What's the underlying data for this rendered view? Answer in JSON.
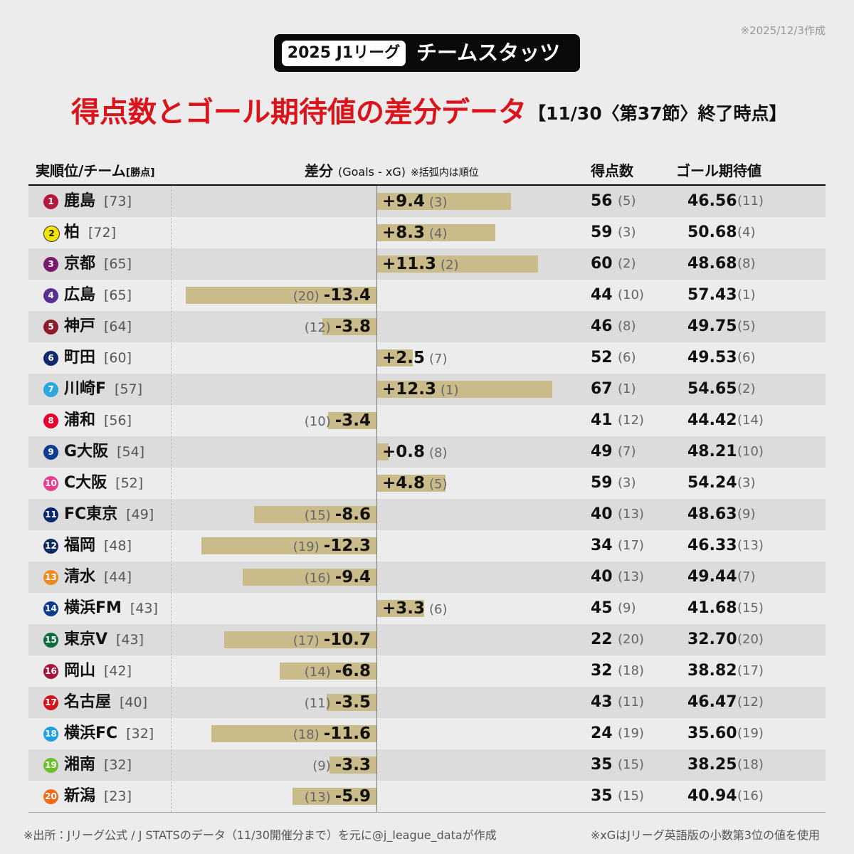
{
  "header": {
    "badge_year": "2025 J1リーグ",
    "badge_title": "チームスタッツ",
    "date_note": "※2025/12/3作成",
    "title": "得点数とゴール期待値の差分データ",
    "subtitle": "【11/30〈第37節〉終了時点】"
  },
  "table": {
    "columns": {
      "team": "実順位/チーム",
      "points": "[勝点]",
      "diff": "差分",
      "diff_formula": "(Goals - xG)",
      "diff_note": "※括弧内は順位",
      "goals": "得点数",
      "xg": "ゴール期待値"
    },
    "bar_color": "#c9bc8a",
    "rows": [
      {
        "rank": 1,
        "team": "鹿島",
        "points": "[73]",
        "color": "#b5193a",
        "diff": 9.4,
        "diff_label": "+9.4",
        "diff_rank": "(3)",
        "goals": 56,
        "goals_rank": "(5)",
        "xg": "46.56",
        "xg_rank": "(11)"
      },
      {
        "rank": 2,
        "team": "柏",
        "points": "[72]",
        "color": "#f2e400",
        "diff": 8.3,
        "diff_label": "+8.3",
        "diff_rank": "(4)",
        "goals": 59,
        "goals_rank": "(3)",
        "xg": "50.68",
        "xg_rank": "(4)"
      },
      {
        "rank": 3,
        "team": "京都",
        "points": "[65]",
        "color": "#7a1a6e",
        "diff": 11.3,
        "diff_label": "+11.3",
        "diff_rank": "(2)",
        "goals": 60,
        "goals_rank": "(2)",
        "xg": "48.68",
        "xg_rank": "(8)"
      },
      {
        "rank": 4,
        "team": "広島",
        "points": "[65]",
        "color": "#5a2d91",
        "diff": -13.4,
        "diff_rank": "(20)",
        "goals": 44,
        "goals_rank": "(10)",
        "xg": "57.43",
        "xg_rank": "(1)"
      },
      {
        "rank": 5,
        "team": "神戸",
        "points": "[64]",
        "color": "#8b1a2b",
        "diff": -3.8,
        "diff_rank": "(12)",
        "goals": 46,
        "goals_rank": "(8)",
        "xg": "49.75",
        "xg_rank": "(5)"
      },
      {
        "rank": 6,
        "team": "町田",
        "points": "[60]",
        "color": "#0e2a6b",
        "diff": 2.5,
        "diff_label": "+2.5",
        "diff_rank": "(7)",
        "goals": 52,
        "goals_rank": "(6)",
        "xg": "49.53",
        "xg_rank": "(6)"
      },
      {
        "rank": 7,
        "team": "川崎F",
        "points": "[57]",
        "color": "#29a8e0",
        "diff": 12.3,
        "diff_label": "+12.3",
        "diff_rank": "(1)",
        "goals": 67,
        "goals_rank": "(1)",
        "xg": "54.65",
        "xg_rank": "(2)"
      },
      {
        "rank": 8,
        "team": "浦和",
        "points": "[56]",
        "color": "#e5002d",
        "diff": -3.4,
        "diff_rank": "(10)",
        "goals": 41,
        "goals_rank": "(12)",
        "xg": "44.42",
        "xg_rank": "(14)"
      },
      {
        "rank": 9,
        "team": "G大阪",
        "points": "[54]",
        "color": "#0b3d91",
        "diff": 0.8,
        "diff_label": "+0.8",
        "diff_rank": "(8)",
        "goals": 49,
        "goals_rank": "(7)",
        "xg": "48.21",
        "xg_rank": "(10)"
      },
      {
        "rank": 10,
        "team": "C大阪",
        "points": "[52]",
        "color": "#e83e8c",
        "diff": 4.8,
        "diff_label": "+4.8",
        "diff_rank": "(5)",
        "goals": 59,
        "goals_rank": "(3)",
        "xg": "54.24",
        "xg_rank": "(3)"
      },
      {
        "rank": 11,
        "team": "FC東京",
        "points": "[49]",
        "color": "#0a2470",
        "diff": -8.6,
        "diff_rank": "(15)",
        "goals": 40,
        "goals_rank": "(13)",
        "xg": "48.63",
        "xg_rank": "(9)"
      },
      {
        "rank": 12,
        "team": "福岡",
        "points": "[48]",
        "color": "#0f2a5c",
        "diff": -12.3,
        "diff_rank": "(19)",
        "goals": 34,
        "goals_rank": "(17)",
        "xg": "46.33",
        "xg_rank": "(13)"
      },
      {
        "rank": 13,
        "team": "清水",
        "points": "[44]",
        "color": "#f08a1c",
        "diff": -9.4,
        "diff_rank": "(16)",
        "goals": 40,
        "goals_rank": "(13)",
        "xg": "49.44",
        "xg_rank": "(7)"
      },
      {
        "rank": 14,
        "team": "横浜FM",
        "points": "[43]",
        "color": "#0d3c8c",
        "diff": 3.3,
        "diff_label": "+3.3",
        "diff_rank": "(6)",
        "goals": 45,
        "goals_rank": "(9)",
        "xg": "41.68",
        "xg_rank": "(15)"
      },
      {
        "rank": 15,
        "team": "東京V",
        "points": "[43]",
        "color": "#0b6b3a",
        "diff": -10.7,
        "diff_rank": "(17)",
        "goals": 22,
        "goals_rank": "(20)",
        "xg": "32.70",
        "xg_rank": "(20)"
      },
      {
        "rank": 16,
        "team": "岡山",
        "points": "[42]",
        "color": "#a5153d",
        "diff": -6.8,
        "diff_rank": "(14)",
        "goals": 32,
        "goals_rank": "(18)",
        "xg": "38.82",
        "xg_rank": "(17)"
      },
      {
        "rank": 17,
        "team": "名古屋",
        "points": "[40]",
        "color": "#d4141c",
        "diff": -3.5,
        "diff_rank": "(11)",
        "goals": 43,
        "goals_rank": "(11)",
        "xg": "46.47",
        "xg_rank": "(12)"
      },
      {
        "rank": 18,
        "team": "横浜FC",
        "points": "[32]",
        "color": "#1fa0e0",
        "diff": -11.6,
        "diff_rank": "(18)",
        "goals": 24,
        "goals_rank": "(19)",
        "xg": "35.60",
        "xg_rank": "(19)"
      },
      {
        "rank": 19,
        "team": "湘南",
        "points": "[32]",
        "color": "#6bbf2a",
        "diff": -3.3,
        "diff_rank": "(9)",
        "goals": 35,
        "goals_rank": "(15)",
        "xg": "38.25",
        "xg_rank": "(18)"
      },
      {
        "rank": 20,
        "team": "新潟",
        "points": "[23]",
        "color": "#f26b1b",
        "diff": -5.9,
        "diff_rank": "(13)",
        "goals": 35,
        "goals_rank": "(15)",
        "xg": "40.94",
        "xg_rank": "(16)"
      }
    ]
  },
  "footer": {
    "source": "※出所：Jリーグ公式 / J STATSのデータ（11/30開催分まで）を元に@j_league_dataが作成",
    "note": "※xGはJリーグ英語版の小数第3位の値を使用"
  }
}
